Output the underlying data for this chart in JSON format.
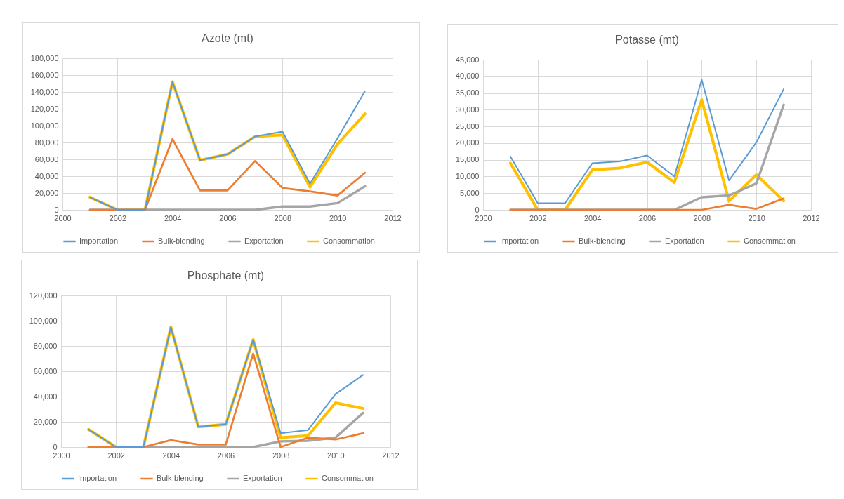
{
  "chart_data": [
    {
      "type": "line",
      "title": "Azote (mt)",
      "x": [
        2001,
        2002,
        2003,
        2004,
        2005,
        2006,
        2007,
        2008,
        2009,
        2010,
        2011
      ],
      "xlim": [
        2000,
        2012
      ],
      "xticks": [
        2000,
        2002,
        2004,
        2006,
        2008,
        2010,
        2012
      ],
      "ylim": [
        0,
        180000
      ],
      "yticks": [
        {
          "value": 0,
          "label": "0"
        },
        {
          "value": 20000,
          "label": "20,000"
        },
        {
          "value": 40000,
          "label": "40,000"
        },
        {
          "value": 60000,
          "label": "60,000"
        },
        {
          "value": 80000,
          "label": "80,000"
        },
        {
          "value": 100000,
          "label": "100,000"
        },
        {
          "value": 120000,
          "label": "120,000"
        },
        {
          "value": 140000,
          "label": "140,000"
        },
        {
          "value": 160000,
          "label": "160,000"
        },
        {
          "value": 180000,
          "label": "180,000"
        }
      ],
      "grid": true,
      "legend": "bottom",
      "series": [
        {
          "name": "Importation",
          "color": "#5b9bd5",
          "values": [
            15000,
            0,
            0,
            152000,
            59000,
            66000,
            87000,
            93000,
            31000,
            85000,
            141000
          ]
        },
        {
          "name": "Bulk-blending",
          "color": "#ed7d31",
          "values": [
            0,
            0,
            0,
            84000,
            23000,
            23000,
            58000,
            26000,
            22000,
            17000,
            44000
          ]
        },
        {
          "name": "Exportation",
          "color": "#a5a5a5",
          "values": [
            0,
            0,
            0,
            0,
            0,
            0,
            0,
            4000,
            4000,
            8000,
            28000
          ]
        },
        {
          "name": "Consommation",
          "color": "#ffc000",
          "values": [
            15000,
            0,
            0,
            152000,
            59000,
            66000,
            87000,
            89000,
            27000,
            78000,
            114000
          ]
        }
      ]
    },
    {
      "type": "line",
      "title": "Potasse (mt)",
      "x": [
        2001,
        2002,
        2003,
        2004,
        2005,
        2006,
        2007,
        2008,
        2009,
        2010,
        2011
      ],
      "xlim": [
        2000,
        2012
      ],
      "xticks": [
        2000,
        2002,
        2004,
        2006,
        2008,
        2010,
        2012
      ],
      "ylim": [
        0,
        45000
      ],
      "yticks": [
        {
          "value": 0,
          "label": "0"
        },
        {
          "value": 5000,
          "label": "5,000"
        },
        {
          "value": 10000,
          "label": "10,000"
        },
        {
          "value": 15000,
          "label": "15,000"
        },
        {
          "value": 20000,
          "label": "20,000"
        },
        {
          "value": 25000,
          "label": "25,000"
        },
        {
          "value": 30000,
          "label": "30,000"
        },
        {
          "value": 35000,
          "label": "35,000"
        },
        {
          "value": 40000,
          "label": "40,000"
        },
        {
          "value": 45000,
          "label": "45,000"
        }
      ],
      "grid": true,
      "legend": "bottom",
      "series": [
        {
          "name": "Importation",
          "color": "#5b9bd5",
          "values": [
            16000,
            2000,
            2000,
            14000,
            14500,
            16300,
            10000,
            39000,
            8800,
            20200,
            36200
          ]
        },
        {
          "name": "Bulk-blending",
          "color": "#ed7d31",
          "values": [
            0,
            0,
            0,
            0,
            0,
            0,
            0,
            0,
            1500,
            300,
            3400
          ]
        },
        {
          "name": "Exportation",
          "color": "#a5a5a5",
          "values": [
            0,
            0,
            0,
            0,
            0,
            0,
            0,
            3800,
            4300,
            7900,
            31500
          ]
        },
        {
          "name": "Consommation",
          "color": "#ffc000",
          "values": [
            14000,
            0,
            0,
            12000,
            12500,
            14300,
            8200,
            33000,
            2600,
            10500,
            2700
          ]
        }
      ]
    },
    {
      "type": "line",
      "title": "Phosphate (mt)",
      "x": [
        2001,
        2002,
        2003,
        2004,
        2005,
        2006,
        2007,
        2008,
        2009,
        2010,
        2011
      ],
      "xlim": [
        2000,
        2012
      ],
      "xticks": [
        2000,
        2002,
        2004,
        2006,
        2008,
        2010,
        2012
      ],
      "ylim": [
        0,
        120000
      ],
      "yticks": [
        {
          "value": 0,
          "label": "0"
        },
        {
          "value": 20000,
          "label": "20,000"
        },
        {
          "value": 40000,
          "label": "40,000"
        },
        {
          "value": 60000,
          "label": "60,000"
        },
        {
          "value": 80000,
          "label": "80,000"
        },
        {
          "value": 100000,
          "label": "100,000"
        },
        {
          "value": 120000,
          "label": "120,000"
        }
      ],
      "grid": true,
      "legend": "bottom",
      "series": [
        {
          "name": "Importation",
          "color": "#5b9bd5",
          "values": [
            14000,
            0,
            0,
            95000,
            16000,
            18000,
            85000,
            11000,
            13500,
            42000,
            57000
          ]
        },
        {
          "name": "Bulk-blending",
          "color": "#ed7d31",
          "values": [
            0,
            0,
            0,
            5500,
            2000,
            2000,
            74000,
            0,
            7500,
            6000,
            11000
          ]
        },
        {
          "name": "Exportation",
          "color": "#a5a5a5",
          "values": [
            0,
            0,
            0,
            0,
            0,
            0,
            0,
            4500,
            5000,
            7500,
            27000
          ]
        },
        {
          "name": "Consommation",
          "color": "#ffc000",
          "values": [
            14000,
            0,
            0,
            95000,
            16000,
            18000,
            85000,
            7500,
            9000,
            35000,
            30500
          ]
        }
      ]
    }
  ]
}
